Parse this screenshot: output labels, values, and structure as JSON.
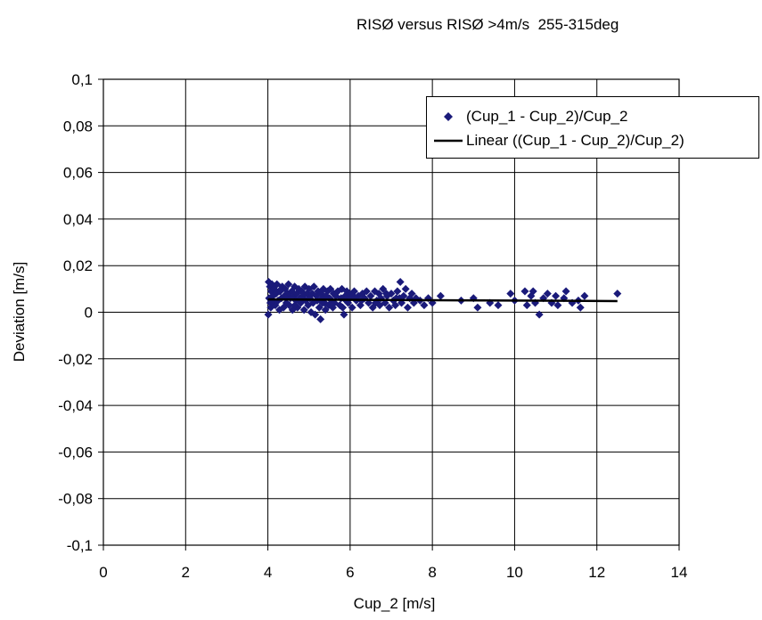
{
  "chart_data": {
    "type": "scatter",
    "title": "RISØ versus RISØ >4m/s  255-315deg",
    "xlabel": "Cup_2 [m/s]",
    "ylabel": "Deviation [m/s]",
    "xlim": [
      0,
      14
    ],
    "ylim": [
      -0.1,
      0.1
    ],
    "xticks": [
      0,
      2,
      4,
      6,
      8,
      10,
      12,
      14
    ],
    "yticks": [
      -0.1,
      -0.08,
      -0.06,
      -0.04,
      -0.02,
      0,
      0.02,
      0.04,
      0.06,
      0.08,
      0.1
    ],
    "xtick_labels": [
      "0",
      "2",
      "4",
      "6",
      "8",
      "10",
      "12",
      "14"
    ],
    "ytick_labels": [
      "-0,1",
      "-0,08",
      "-0,06",
      "-0,04",
      "-0,02",
      "0",
      "0,02",
      "0,04",
      "0,06",
      "0,08",
      "0,1"
    ],
    "grid": true,
    "legend_position": "top-right",
    "series": [
      {
        "name": "(Cup_1 - Cup_2)/Cup_2",
        "kind": "scatter",
        "marker": "diamond",
        "color": "#1a1a7a",
        "points": [
          [
            4.02,
            0.013
          ],
          [
            4.05,
            0.011
          ],
          [
            4.08,
            0.009
          ],
          [
            4.1,
            0.012
          ],
          [
            4.03,
            0.006
          ],
          [
            4.06,
            0.004
          ],
          [
            4.01,
            -0.001
          ],
          [
            4.12,
            0.007
          ],
          [
            4.15,
            0.01
          ],
          [
            4.18,
            0.003
          ],
          [
            4.2,
            0.008
          ],
          [
            4.22,
            0.012
          ],
          [
            4.25,
            0.005
          ],
          [
            4.28,
            0.001
          ],
          [
            4.3,
            0.009
          ],
          [
            4.33,
            0.006
          ],
          [
            4.35,
            0.011
          ],
          [
            4.38,
            0.002
          ],
          [
            4.4,
            0.007
          ],
          [
            4.42,
            0.01
          ],
          [
            4.45,
            0.004
          ],
          [
            4.48,
            0.008
          ],
          [
            4.5,
            0.012
          ],
          [
            4.52,
            0.003
          ],
          [
            4.55,
            0.006
          ],
          [
            4.58,
            0.009
          ],
          [
            4.6,
            0.001
          ],
          [
            4.62,
            0.007
          ],
          [
            4.65,
            0.011
          ],
          [
            4.68,
            0.005
          ],
          [
            4.7,
            0.008
          ],
          [
            4.72,
            0.002
          ],
          [
            4.75,
            0.01
          ],
          [
            4.78,
            0.006
          ],
          [
            4.8,
            0.004
          ],
          [
            4.82,
            0.009
          ],
          [
            4.85,
            0.007
          ],
          [
            4.88,
            0.001
          ],
          [
            4.9,
            0.011
          ],
          [
            4.92,
            0.005
          ],
          [
            4.95,
            0.008
          ],
          [
            4.98,
            0.003
          ],
          [
            5.0,
            0.01
          ],
          [
            5.02,
            0.006
          ],
          [
            5.05,
            0.0
          ],
          [
            5.08,
            0.008
          ],
          [
            5.1,
            0.004
          ],
          [
            5.12,
            0.011
          ],
          [
            5.15,
            -0.001
          ],
          [
            5.18,
            0.007
          ],
          [
            5.2,
            0.005
          ],
          [
            5.22,
            0.009
          ],
          [
            5.25,
            0.002
          ],
          [
            5.28,
            -0.003
          ],
          [
            5.3,
            0.008
          ],
          [
            5.32,
            0.006
          ],
          [
            5.35,
            0.01
          ],
          [
            5.38,
            0.004
          ],
          [
            5.4,
            0.001
          ],
          [
            5.42,
            0.007
          ],
          [
            5.45,
            0.009
          ],
          [
            5.48,
            0.003
          ],
          [
            5.5,
            0.006
          ],
          [
            5.52,
            0.01
          ],
          [
            5.55,
            0.005
          ],
          [
            5.58,
            0.002
          ],
          [
            5.6,
            0.008
          ],
          [
            5.62,
            0.004
          ],
          [
            5.65,
            0.007
          ],
          [
            5.7,
            0.009
          ],
          [
            5.75,
            0.003
          ],
          [
            5.78,
            0.006
          ],
          [
            5.8,
            0.01
          ],
          [
            5.82,
            0.002
          ],
          [
            5.85,
            -0.001
          ],
          [
            5.88,
            0.007
          ],
          [
            5.9,
            0.005
          ],
          [
            5.92,
            0.009
          ],
          [
            5.95,
            0.004
          ],
          [
            5.98,
            0.008
          ],
          [
            6.0,
            0.006
          ],
          [
            6.05,
            0.002
          ],
          [
            6.1,
            0.009
          ],
          [
            6.15,
            0.005
          ],
          [
            6.2,
            0.007
          ],
          [
            6.25,
            0.003
          ],
          [
            6.3,
            0.008
          ],
          [
            6.35,
            0.006
          ],
          [
            6.4,
            0.009
          ],
          [
            6.45,
            0.004
          ],
          [
            6.5,
            0.007
          ],
          [
            6.55,
            0.002
          ],
          [
            6.6,
            0.009
          ],
          [
            6.65,
            0.005
          ],
          [
            6.7,
            0.008
          ],
          [
            6.72,
            0.003
          ],
          [
            6.75,
            0.006
          ],
          [
            6.8,
            0.01
          ],
          [
            6.85,
            0.004
          ],
          [
            6.9,
            0.007
          ],
          [
            6.95,
            0.002
          ],
          [
            7.0,
            0.008
          ],
          [
            7.05,
            0.005
          ],
          [
            7.1,
            0.003
          ],
          [
            7.15,
            0.009
          ],
          [
            7.2,
            0.006
          ],
          [
            7.22,
            0.013
          ],
          [
            7.25,
            0.004
          ],
          [
            7.3,
            0.007
          ],
          [
            7.35,
            0.01
          ],
          [
            7.4,
            0.002
          ],
          [
            7.45,
            0.006
          ],
          [
            7.5,
            0.008
          ],
          [
            7.55,
            0.004
          ],
          [
            7.6,
            0.006
          ],
          [
            7.7,
            0.005
          ],
          [
            7.8,
            0.003
          ],
          [
            7.9,
            0.006
          ],
          [
            8.0,
            0.004
          ],
          [
            8.2,
            0.007
          ],
          [
            8.7,
            0.005
          ],
          [
            9.0,
            0.006
          ],
          [
            9.1,
            0.002
          ],
          [
            9.4,
            0.004
          ],
          [
            9.6,
            0.003
          ],
          [
            9.9,
            0.008
          ],
          [
            10.0,
            0.005
          ],
          [
            10.25,
            0.009
          ],
          [
            10.3,
            0.003
          ],
          [
            10.4,
            0.007
          ],
          [
            10.45,
            0.009
          ],
          [
            10.5,
            0.004
          ],
          [
            10.6,
            -0.001
          ],
          [
            10.7,
            0.006
          ],
          [
            10.8,
            0.008
          ],
          [
            10.9,
            0.004
          ],
          [
            11.0,
            0.007
          ],
          [
            11.05,
            0.003
          ],
          [
            11.2,
            0.006
          ],
          [
            11.25,
            0.009
          ],
          [
            11.4,
            0.004
          ],
          [
            11.55,
            0.005
          ],
          [
            11.6,
            0.002
          ],
          [
            11.7,
            0.007
          ],
          [
            12.5,
            0.008
          ],
          [
            4.07,
            0.002
          ],
          [
            4.13,
            0.005
          ],
          [
            4.27,
            0.009
          ],
          [
            4.44,
            0.006
          ],
          [
            4.66,
            0.003
          ],
          [
            5.33,
            0.004
          ],
          [
            6.08,
            0.007
          ],
          [
            6.28,
            0.005
          ],
          [
            6.62,
            0.004
          ],
          [
            6.88,
            0.008
          ],
          [
            7.12,
            0.006
          ]
        ]
      },
      {
        "name": "Linear ((Cup_1 - Cup_2)/Cup_2)",
        "kind": "trendline",
        "color": "#000000",
        "points": [
          [
            4.0,
            0.0055
          ],
          [
            12.5,
            0.0048
          ]
        ]
      }
    ]
  }
}
